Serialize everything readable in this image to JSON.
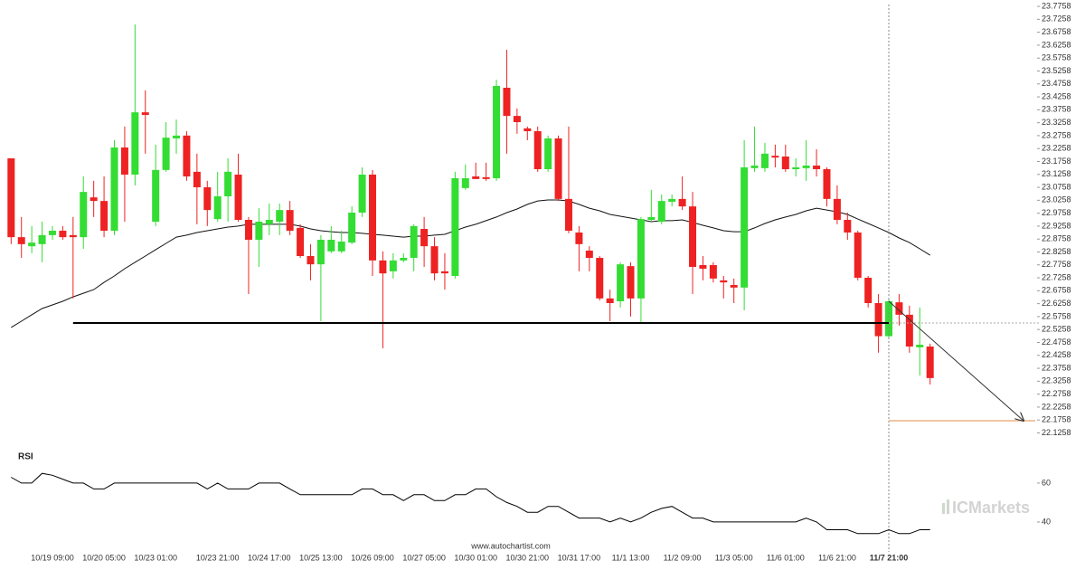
{
  "chart_data": [
    {
      "type": "candlestick",
      "categories": [
        null,
        null,
        null,
        null,
        "10/19 09:00",
        null,
        null,
        null,
        null,
        "10/20 05:00",
        null,
        null,
        null,
        null,
        "10/23 01:00",
        null,
        null,
        null,
        null,
        null,
        "10/23 21:00",
        null,
        null,
        null,
        null,
        "10/24 17:00",
        null,
        null,
        null,
        null,
        "10/25 13:00",
        null,
        null,
        null,
        null,
        "10/26 09:00",
        null,
        null,
        null,
        null,
        "10/27 05:00",
        null,
        null,
        null,
        null,
        "10/30 01:00",
        null,
        null,
        null,
        null,
        "10/30 21:00",
        null,
        null,
        null,
        null,
        "10/31 17:00",
        null,
        null,
        null,
        null,
        "11/1 13:00",
        null,
        null,
        null,
        null,
        "11/2 09:00",
        null,
        null,
        null,
        null,
        "11/3 05:00",
        null,
        null,
        null,
        null,
        "11/6 01:00",
        null,
        null,
        null,
        null,
        "11/6 21:00",
        null,
        null,
        null,
        null,
        "11/7 21:00",
        null,
        null,
        null,
        null
      ],
      "open": [
        23.188,
        22.883,
        22.848,
        22.856,
        22.891,
        22.908,
        22.891,
        22.883,
        23.037,
        23.023,
        22.908,
        23.23,
        23.125,
        23.366,
        22.943,
        23.143,
        23.265,
        23.276,
        23.136,
        23.076,
        22.953,
        23.041,
        23.125,
        22.95,
        22.873,
        22.933,
        22.943,
        22.988,
        22.919,
        22.81,
        22.778,
        22.828,
        22.828,
        22.862,
        22.978,
        23.125,
        22.793,
        22.751,
        22.793,
        22.803,
        22.915,
        22.848,
        22.751,
        22.733,
        23.073,
        23.118,
        23.115,
        23.111,
        23.461,
        23.352,
        23.304,
        23.293,
        23.146,
        23.265,
        23.031,
        22.901,
        22.831,
        22.803,
        22.646,
        22.635,
        22.771,
        22.646,
        22.95,
        22.943,
        23.02,
        23.031,
        23.002,
        22.775,
        22.775,
        22.716,
        22.698,
        22.688,
        23.15,
        23.15,
        23.198,
        23.195,
        23.146,
        23.15,
        23.16,
        23.146,
        23.031,
        22.95,
        22.901,
        22.726,
        22.628,
        22.5,
        22.631,
        22.583,
        22.457,
        22.46
      ],
      "high": [
        23.188,
        22.961,
        22.926,
        22.943,
        22.926,
        22.926,
        22.961,
        23.118,
        23.101,
        23.118,
        23.258,
        23.311,
        23.706,
        23.451,
        23.241,
        23.328,
        23.338,
        23.293,
        23.206,
        23.101,
        23.136,
        23.188,
        23.206,
        22.961,
        22.995,
        23.013,
        23.013,
        23.023,
        22.933,
        22.856,
        22.891,
        22.926,
        22.908,
        23.002,
        23.153,
        23.143,
        22.828,
        22.821,
        22.821,
        22.933,
        22.961,
        22.883,
        22.821,
        23.136,
        23.164,
        23.171,
        23.171,
        23.492,
        23.608,
        23.381,
        23.311,
        23.311,
        23.276,
        23.276,
        23.311,
        22.926,
        22.848,
        22.81,
        22.68,
        22.786,
        22.786,
        22.961,
        23.066,
        23.048,
        23.048,
        23.118,
        23.058,
        22.81,
        22.786,
        22.733,
        22.723,
        23.258,
        23.311,
        23.248,
        23.241,
        23.241,
        23.188,
        23.258,
        23.223,
        23.153,
        23.083,
        22.978,
        22.908,
        22.733,
        22.663,
        22.646,
        22.663,
        22.618,
        22.611,
        22.471
      ],
      "low": [
        22.856,
        22.803,
        22.821,
        22.786,
        22.873,
        22.873,
        22.646,
        22.838,
        22.961,
        22.883,
        22.891,
        22.943,
        23.083,
        23.206,
        22.926,
        23.136,
        23.206,
        23.101,
        22.933,
        22.926,
        22.943,
        22.943,
        22.943,
        22.663,
        22.768,
        22.891,
        22.891,
        22.891,
        22.803,
        22.716,
        22.558,
        22.821,
        22.821,
        22.856,
        22.961,
        22.733,
        22.453,
        22.723,
        22.786,
        22.751,
        22.768,
        22.716,
        22.68,
        22.723,
        23.066,
        23.108,
        23.101,
        23.101,
        23.206,
        23.283,
        23.258,
        23.136,
        23.136,
        23.023,
        22.898,
        22.751,
        22.751,
        22.638,
        22.558,
        22.611,
        22.576,
        22.551,
        22.943,
        22.933,
        23.002,
        22.988,
        22.663,
        22.716,
        22.708,
        22.646,
        22.628,
        22.6,
        23.136,
        23.136,
        23.153,
        23.136,
        23.118,
        23.101,
        23.118,
        23.002,
        22.933,
        22.873,
        22.716,
        22.611,
        22.436,
        22.488,
        22.541,
        22.436,
        22.348,
        22.313
      ],
      "close": [
        22.883,
        22.856,
        22.862,
        22.891,
        22.908,
        22.883,
        22.883,
        23.058,
        23.023,
        22.908,
        23.23,
        23.125,
        23.366,
        23.356,
        23.143,
        23.268,
        23.276,
        23.118,
        23.076,
        22.988,
        23.041,
        23.136,
        22.95,
        22.873,
        22.943,
        22.95,
        22.988,
        22.908,
        22.81,
        22.778,
        22.873,
        22.873,
        22.866,
        22.978,
        23.125,
        22.793,
        22.743,
        22.793,
        22.803,
        22.926,
        22.848,
        22.743,
        22.743,
        23.111,
        23.111,
        23.108,
        23.108,
        23.468,
        23.352,
        23.328,
        23.293,
        23.146,
        23.265,
        23.031,
        22.908,
        22.856,
        22.803,
        22.646,
        22.628,
        22.778,
        22.646,
        22.953,
        22.961,
        23.023,
        23.031,
        23.002,
        22.768,
        22.761,
        22.723,
        22.708,
        22.688,
        23.153,
        23.16,
        23.206,
        23.191,
        23.146,
        23.153,
        23.16,
        23.146,
        23.031,
        22.95,
        22.901,
        22.726,
        22.628,
        22.5,
        22.635,
        22.583,
        22.46,
        22.467,
        22.338
      ],
      "up_color": "#33dd33",
      "down_color": "#ee2222",
      "ma": {
        "color": "#111111",
        "values": [
          22.534,
          22.558,
          22.583,
          22.607,
          22.621,
          22.635,
          22.652,
          22.666,
          22.68,
          22.708,
          22.733,
          22.761,
          22.786,
          22.81,
          22.835,
          22.859,
          22.883,
          22.891,
          22.901,
          22.908,
          22.915,
          22.922,
          22.926,
          22.933,
          22.933,
          22.933,
          22.933,
          22.933,
          22.926,
          22.915,
          22.908,
          22.904,
          22.901,
          22.901,
          22.898,
          22.894,
          22.891,
          22.887,
          22.883,
          22.887,
          22.887,
          22.891,
          22.894,
          22.908,
          22.922,
          22.933,
          22.947,
          22.961,
          22.978,
          22.992,
          23.01,
          23.023,
          23.027,
          23.027,
          23.023,
          23.01,
          22.995,
          22.985,
          22.971,
          22.964,
          22.957,
          22.95,
          22.943,
          22.947,
          22.947,
          22.95,
          22.94,
          22.929,
          22.919,
          22.908,
          22.904,
          22.904,
          22.919,
          22.936,
          22.95,
          22.961,
          22.971,
          22.985,
          22.995,
          22.988,
          22.981,
          22.971,
          22.953,
          22.936,
          22.919,
          22.901,
          22.88,
          22.862,
          22.838,
          22.813
        ]
      },
      "support": 22.551,
      "support_color": "#000000",
      "target": 22.173,
      "target_color": "#e8a46c",
      "ylim": [
        22.0855,
        23.8005
      ],
      "yticks": [
        23.7758,
        23.7258,
        23.6758,
        23.6258,
        23.5758,
        23.5258,
        23.4758,
        23.4258,
        23.3758,
        23.3258,
        23.2758,
        23.2258,
        23.1758,
        23.1258,
        23.0758,
        23.0258,
        22.9758,
        22.9258,
        22.8758,
        22.8258,
        22.7758,
        22.7258,
        22.6758,
        22.6258,
        22.5758,
        22.5258,
        22.4758,
        22.4258,
        22.3758,
        22.3258,
        22.2758,
        22.2258,
        22.1758,
        22.1258
      ],
      "source": "www.autochartist.com",
      "watermark": "ICMarkets"
    },
    {
      "type": "line",
      "title": "RSI",
      "color": "#000000",
      "values": [
        63,
        60,
        60,
        65,
        64,
        62,
        60,
        60,
        57,
        57,
        60,
        60,
        60,
        60,
        60,
        60,
        60,
        60,
        60,
        57,
        60,
        57,
        57,
        57,
        60,
        60,
        60,
        57,
        54,
        54,
        54,
        54,
        54,
        54,
        57,
        57,
        54,
        54,
        51,
        54,
        54,
        51,
        51,
        54,
        54,
        57,
        57,
        53,
        50,
        48,
        45,
        45,
        48,
        48,
        45,
        42,
        42,
        42,
        40,
        42,
        40,
        42,
        45,
        47,
        48,
        45,
        42,
        42,
        40,
        40,
        40,
        40,
        40,
        40,
        40,
        40,
        40,
        42,
        40,
        36,
        36,
        36,
        34,
        34,
        34,
        36,
        34,
        34,
        36,
        36
      ],
      "ylim": [
        31.6,
        78.1
      ],
      "yticks": [
        60,
        40
      ]
    }
  ]
}
